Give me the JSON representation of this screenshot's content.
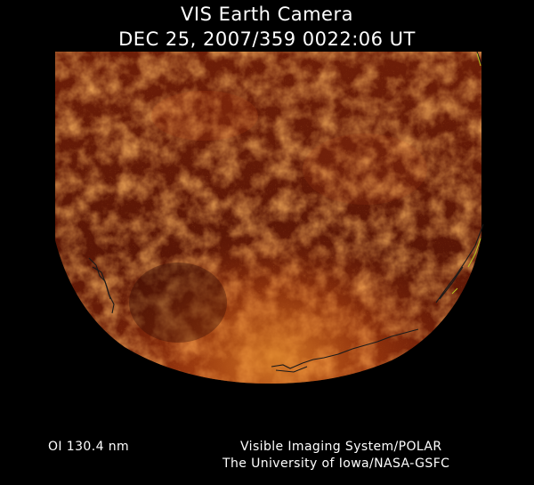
{
  "header": {
    "title": "VIS Earth Camera",
    "timestamp": "DEC 25, 2007/359 0022:06 UT"
  },
  "image": {
    "subject": "earth-disk-far-ultraviolet-image",
    "colormap": [
      "#000000",
      "#3a0a02",
      "#6e1e08",
      "#a3360e",
      "#d25a16",
      "#f59a32"
    ],
    "coastline_color": "#1a1a1a",
    "limb_outline_color": "#b8c820"
  },
  "footer": {
    "filter": "OI  130.4 nm",
    "credit_line_1": "Visible Imaging System/POLAR",
    "credit_line_2": "The University of Iowa/NASA-GSFC"
  }
}
